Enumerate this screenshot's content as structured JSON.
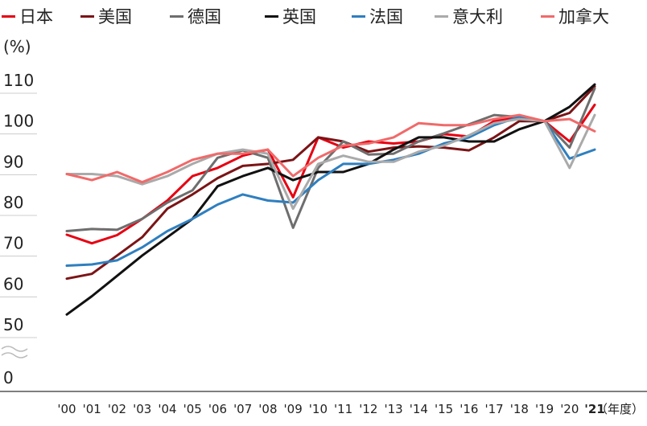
{
  "legend": [
    {
      "label": "日本",
      "color": "#e60012"
    },
    {
      "label": "美国",
      "color": "#7b1416"
    },
    {
      "label": "德国",
      "color": "#6e6e6e"
    },
    {
      "label": "英国",
      "color": "#111111"
    },
    {
      "label": "法国",
      "color": "#2f7fbf"
    },
    {
      "label": "意大利",
      "color": "#aaaaaa"
    },
    {
      "label": "加拿大",
      "color": "#f06a6a"
    }
  ],
  "y_unit": "(%)",
  "x_unit": "（年度）",
  "chart_data": {
    "type": "line",
    "x": [
      "'00",
      "'01",
      "'02",
      "'03",
      "'04",
      "'05",
      "'06",
      "'07",
      "'08",
      "'09",
      "'10",
      "'11",
      "'12",
      "'13",
      "'14",
      "'15",
      "'16",
      "'17",
      "'18",
      "'19",
      "'20",
      "'21"
    ],
    "x_bold_last": true,
    "y_ticks": [
      110,
      100,
      90,
      80,
      70,
      60,
      50,
      0
    ],
    "y_axis_break": "between 50 and 0",
    "ylim": [
      50,
      110
    ],
    "grid": true,
    "legend_position": "top",
    "series": [
      {
        "name": "日本",
        "color": "#e60012",
        "values": [
          72.1,
          70.0,
          72.0,
          76.0,
          80.5,
          86.5,
          88.5,
          91.5,
          93.0,
          81.3,
          96.0,
          93.5,
          95.0,
          94.5,
          95.0,
          96.8,
          96.2,
          100.0,
          101.2,
          100.0,
          95.0,
          104.0
        ]
      },
      {
        "name": "美国",
        "color": "#7b1416",
        "values": [
          61.3,
          62.5,
          67.0,
          71.5,
          78.5,
          82.0,
          86.0,
          89.0,
          89.5,
          90.5,
          96.0,
          95.0,
          92.5,
          93.5,
          93.8,
          93.5,
          92.8,
          96.0,
          100.0,
          100.0,
          102.0,
          108.5
        ]
      },
      {
        "name": "德国",
        "color": "#6e6e6e",
        "values": [
          73.0,
          73.5,
          73.3,
          76.0,
          80.0,
          83.0,
          91.0,
          92.8,
          91.0,
          73.8,
          88.5,
          95.0,
          91.8,
          92.0,
          95.0,
          97.0,
          99.2,
          101.5,
          101.0,
          100.0,
          93.5,
          108.0
        ]
      },
      {
        "name": "英国",
        "color": "#111111",
        "values": [
          52.5,
          57.0,
          62.0,
          67.0,
          71.5,
          76.0,
          84.0,
          86.5,
          88.5,
          85.5,
          87.5,
          87.5,
          89.5,
          93.0,
          96.0,
          96.0,
          95.0,
          95.0,
          98.0,
          100.0,
          103.5,
          109.0
        ]
      },
      {
        "name": "法国",
        "color": "#2f7fbf",
        "values": [
          64.5,
          64.8,
          65.8,
          69.0,
          73.0,
          76.0,
          79.5,
          82.0,
          80.5,
          80.0,
          85.5,
          89.5,
          89.5,
          90.5,
          92.0,
          94.5,
          96.0,
          99.0,
          101.0,
          100.0,
          90.8,
          93.0
        ]
      },
      {
        "name": "意大利",
        "color": "#aaaaaa",
        "values": [
          87.0,
          87.0,
          86.5,
          84.5,
          86.5,
          89.5,
          92.0,
          93.0,
          92.0,
          78.5,
          89.5,
          91.5,
          90.0,
          90.0,
          92.5,
          94.0,
          96.5,
          99.5,
          100.5,
          100.0,
          88.5,
          101.5
        ]
      },
      {
        "name": "加拿大",
        "color": "#f06a6a",
        "values": [
          87.0,
          85.5,
          87.5,
          85.0,
          87.5,
          90.5,
          92.0,
          92.0,
          93.0,
          86.5,
          91.0,
          94.0,
          94.5,
          96.0,
          99.5,
          99.0,
          99.0,
          100.5,
          101.5,
          100.0,
          100.5,
          97.5
        ]
      }
    ]
  }
}
